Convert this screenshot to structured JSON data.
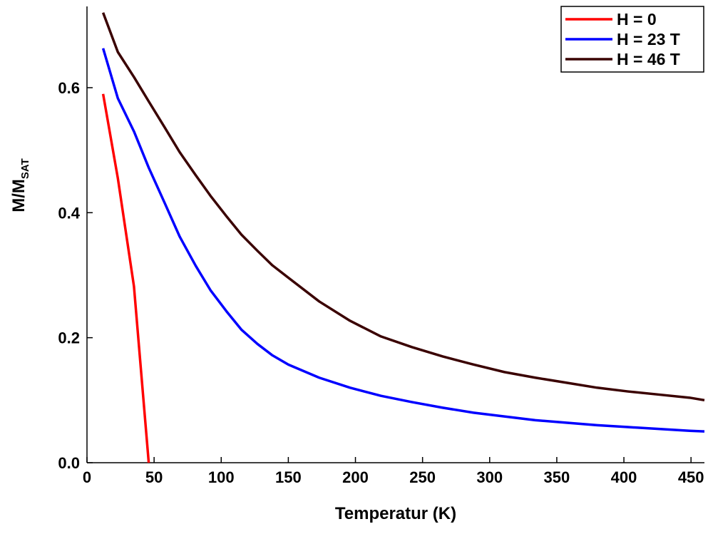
{
  "chart_data": {
    "type": "line",
    "xlabel": "Temperatur (K)",
    "ylabel": {
      "main": "M/M",
      "sub": "SAT"
    },
    "x": [
      12,
      23,
      35,
      46,
      58,
      69,
      81,
      92,
      104,
      115,
      127,
      138,
      150,
      173,
      196,
      219,
      242,
      265,
      288,
      311,
      334,
      357,
      380,
      403,
      426,
      449,
      460
    ],
    "series": [
      {
        "name": "H = 0",
        "color": "#ff0000",
        "values": [
          0.59,
          0.455,
          0.282,
          0.0,
          null,
          null,
          null,
          null,
          null,
          null,
          null,
          null,
          null,
          null,
          null,
          null,
          null,
          null,
          null,
          null,
          null,
          null,
          null,
          null,
          null,
          null,
          null
        ]
      },
      {
        "name": "H = 23 T",
        "color": "#0000ff",
        "values": [
          0.663,
          0.583,
          0.53,
          0.472,
          0.415,
          0.362,
          0.315,
          0.276,
          0.242,
          0.213,
          0.19,
          0.172,
          0.157,
          0.136,
          0.12,
          0.107,
          0.097,
          0.088,
          0.08,
          0.074,
          0.068,
          0.064,
          0.06,
          0.057,
          0.054,
          0.051,
          0.05
        ]
      },
      {
        "name": "H = 46 T",
        "color": "#3a0000",
        "values": [
          0.72,
          0.657,
          0.617,
          0.578,
          0.536,
          0.497,
          0.46,
          0.427,
          0.394,
          0.365,
          0.339,
          0.316,
          0.296,
          0.258,
          0.227,
          0.202,
          0.185,
          0.17,
          0.157,
          0.145,
          0.136,
          0.128,
          0.12,
          0.114,
          0.109,
          0.104,
          0.1
        ]
      }
    ],
    "xlim": [
      0,
      460
    ],
    "xticks": [
      0,
      50,
      100,
      150,
      200,
      250,
      300,
      350,
      400,
      450
    ],
    "ylim": [
      0,
      0.73
    ],
    "yticks": [
      {
        "value": 0,
        "label": "0.0"
      },
      0.2,
      0.4,
      0.6
    ],
    "legend_position": "upper right"
  }
}
